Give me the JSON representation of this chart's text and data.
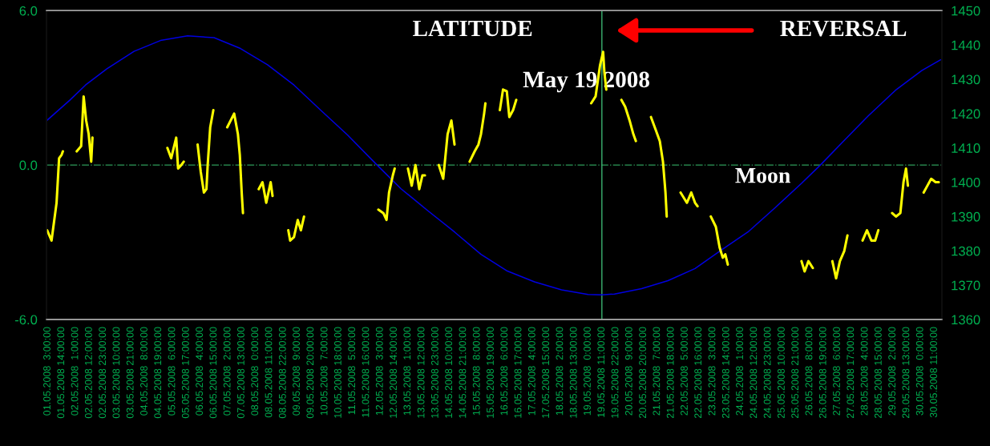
{
  "chart_data": {
    "type": "line",
    "annotations": [
      "LATITUDE",
      "May 19 2008",
      "REVERSAL"
    ],
    "xlim": [
      "2008-05-01T02:00",
      "2008-05-30T17:00"
    ],
    "xticks": [
      {
        "value": "2008-05-01T03:00",
        "label": "01.05.2008  3:00:00"
      },
      {
        "value": "2008-05-01T14:00",
        "label": "01.05.2008 14:00:00"
      },
      {
        "value": "2008-05-02T01:00",
        "label": "02.05.2008  1:00:00"
      },
      {
        "value": "2008-05-02T12:00",
        "label": "02.05.2008 12:00:00"
      },
      {
        "value": "2008-05-02T23:00",
        "label": "02.05.2008 23:00:00"
      },
      {
        "value": "2008-05-03T10:00",
        "label": "03.05.2008 10:00:00"
      },
      {
        "value": "2008-05-03T21:00",
        "label": "03.05.2008 21:00:00"
      },
      {
        "value": "2008-05-04T08:00",
        "label": "04.05.2008  8:00:00"
      },
      {
        "value": "2008-05-04T19:00",
        "label": "04.05.2008 19:00:00"
      },
      {
        "value": "2008-05-05T06:00",
        "label": "05.05.2008  6:00:00"
      },
      {
        "value": "2008-05-05T17:00",
        "label": "05.05.2008 17:00:00"
      },
      {
        "value": "2008-05-06T04:00",
        "label": "06.05.2008  4:00:00"
      },
      {
        "value": "2008-05-06T15:00",
        "label": "06.05.2008 15:00:00"
      },
      {
        "value": "2008-05-07T02:00",
        "label": "07.05.2008  2:00:00"
      },
      {
        "value": "2008-05-07T13:00",
        "label": "07.05.2008 13:00:00"
      },
      {
        "value": "2008-05-08T00:00",
        "label": "08.05.2008  0:00:00"
      },
      {
        "value": "2008-05-08T11:00",
        "label": "08.05.2008 11:00:00"
      },
      {
        "value": "2008-05-08T22:00",
        "label": "08.05.2008 22:00:00"
      },
      {
        "value": "2008-05-09T09:00",
        "label": "09.05.2008  9:00:00"
      },
      {
        "value": "2008-05-09T20:00",
        "label": "09.05.2008 20:00:00"
      },
      {
        "value": "2008-05-10T07:00",
        "label": "10.05.2008  7:00:00"
      },
      {
        "value": "2008-05-10T18:00",
        "label": "10.05.2008 18:00:00"
      },
      {
        "value": "2008-05-11T05:00",
        "label": "11.05.2008  5:00:00"
      },
      {
        "value": "2008-05-11T16:00",
        "label": "11.05.2008 16:00:00"
      },
      {
        "value": "2008-05-12T03:00",
        "label": "12.05.2008  3:00:00"
      },
      {
        "value": "2008-05-12T14:00",
        "label": "12.05.2008 14:00:00"
      },
      {
        "value": "2008-05-13T01:00",
        "label": "13.05.2008  1:00:00"
      },
      {
        "value": "2008-05-13T12:00",
        "label": "13.05.2008 12:00:00"
      },
      {
        "value": "2008-05-13T23:00",
        "label": "13.05.2008 23:00:00"
      },
      {
        "value": "2008-05-14T10:00",
        "label": "14.05.2008 10:00:00"
      },
      {
        "value": "2008-05-14T21:00",
        "label": "14.05.2008 21:00:00"
      },
      {
        "value": "2008-05-15T08:00",
        "label": "15.05.2008  8:00:00"
      },
      {
        "value": "2008-05-15T19:00",
        "label": "15.05.2008 19:00:00"
      },
      {
        "value": "2008-05-16T06:00",
        "label": "16.05.2008  6:00:00"
      },
      {
        "value": "2008-05-16T17:00",
        "label": "16.05.2008 17:00:00"
      },
      {
        "value": "2008-05-17T04:00",
        "label": "17.05.2008  4:00:00"
      },
      {
        "value": "2008-05-17T15:00",
        "label": "17.05.2008 15:00:00"
      },
      {
        "value": "2008-05-18T02:00",
        "label": "18.05.2008  2:00:00"
      },
      {
        "value": "2008-05-18T13:00",
        "label": "18.05.2008 13:00:00"
      },
      {
        "value": "2008-05-19T00:00",
        "label": "19.05.2008  0:00:00"
      },
      {
        "value": "2008-05-19T11:00",
        "label": "19.05.2008 11:00:00"
      },
      {
        "value": "2008-05-19T22:00",
        "label": "19.05.2008 22:00:00"
      },
      {
        "value": "2008-05-20T09:00",
        "label": "20.05.2008  9:00:00"
      },
      {
        "value": "2008-05-20T20:00",
        "label": "20.05.2008 20:00:00"
      },
      {
        "value": "2008-05-21T07:00",
        "label": "21.05.2008  7:00:00"
      },
      {
        "value": "2008-05-21T18:00",
        "label": "21.05.2008 18:00:00"
      },
      {
        "value": "2008-05-22T05:00",
        "label": "22.05.2008  5:00:00"
      },
      {
        "value": "2008-05-22T16:00",
        "label": "22.05.2008 16:00:00"
      },
      {
        "value": "2008-05-23T03:00",
        "label": "23.05.2008  3:00:00"
      },
      {
        "value": "2008-05-23T14:00",
        "label": "23.05.2008 14:00:00"
      },
      {
        "value": "2008-05-24T01:00",
        "label": "24.05.2008  1:00:00"
      },
      {
        "value": "2008-05-24T12:00",
        "label": "24.05.2008 12:00:00"
      },
      {
        "value": "2008-05-24T23:00",
        "label": "24.05.2008 23:00:00"
      },
      {
        "value": "2008-05-25T10:00",
        "label": "25.05.2008 10:00:00"
      },
      {
        "value": "2008-05-25T21:00",
        "label": "25.05.2008 21:00:00"
      },
      {
        "value": "2008-05-26T08:00",
        "label": "26.05.2008  8:00:00"
      },
      {
        "value": "2008-05-26T19:00",
        "label": "26.05.2008 19:00:00"
      },
      {
        "value": "2008-05-27T06:00",
        "label": "27.05.2008  6:00:00"
      },
      {
        "value": "2008-05-27T17:00",
        "label": "27.05.2008 17:00:00"
      },
      {
        "value": "2008-05-28T04:00",
        "label": "28.05.2008  4:00:00"
      },
      {
        "value": "2008-05-28T15:00",
        "label": "28.05.2008 15:00:00"
      },
      {
        "value": "2008-05-29T02:00",
        "label": "29.05.2008  2:00:00"
      },
      {
        "value": "2008-05-29T13:00",
        "label": "29.05.2008 13:00:00"
      },
      {
        "value": "2008-05-30T00:00",
        "label": "30.05.2008  0:00:00"
      },
      {
        "value": "2008-05-30T11:00",
        "label": "30.05.2008 11:00:00"
      }
    ],
    "ylim": [
      -6,
      6
    ],
    "yticks": [
      {
        "value": -6,
        "label": "-6.0"
      },
      {
        "value": 0,
        "label": "0.0"
      },
      {
        "value": 6,
        "label": "6.0"
      }
    ],
    "y2lim": [
      1360,
      1450
    ],
    "y2ticks": [
      1360,
      1370,
      1380,
      1390,
      1400,
      1410,
      1420,
      1430,
      1440,
      1450
    ],
    "ref_lines": [
      {
        "axis": "y",
        "value": 0,
        "color": "#2e9b5a",
        "line_style": "dashdot"
      },
      {
        "axis": "x",
        "value": "2008-05-19T11:00",
        "color": "#3cb371",
        "line_style": "solid"
      }
    ],
    "grid": false,
    "legend": false,
    "series": [
      {
        "name": "Moon",
        "color": "#0000e0",
        "x": [
          "2008-05-01T02:00",
          "2008-05-01T20:30",
          "2008-05-02T09:00",
          "2008-05-03T02:00",
          "2008-05-03T23:30",
          "2008-05-04T20:30",
          "2008-05-05T18:00",
          "2008-05-06T15:00",
          "2008-05-07T12:00",
          "2008-05-08T09:30",
          "2008-05-09T06:30",
          "2008-05-10T04:00",
          "2008-05-11T01:00",
          "2008-05-12T00:30",
          "2008-05-12T19:30",
          "2008-05-13T16:30",
          "2008-05-14T14:00",
          "2008-05-15T11:00",
          "2008-05-16T08:00",
          "2008-05-17T05:30",
          "2008-05-18T03:00",
          "2008-05-19T00:00",
          "2008-05-19T11:00",
          "2008-05-19T21:00",
          "2008-05-20T18:30",
          "2008-05-21T15:30",
          "2008-05-22T13:00",
          "2008-05-23T10:00",
          "2008-05-24T07:00",
          "2008-05-25T04:30",
          "2008-05-26T01:30",
          "2008-05-26T16:30",
          "2008-05-27T09:30",
          "2008-05-28T06:30",
          "2008-05-29T04:00",
          "2008-05-30T01:00",
          "2008-05-30T16:00"
        ],
        "values": [
          1.72,
          2.52,
          3.11,
          3.74,
          4.42,
          4.84,
          5.02,
          4.95,
          4.53,
          3.9,
          3.11,
          2.12,
          1.17,
          0,
          -0.92,
          -1.76,
          -2.6,
          -3.47,
          -4.12,
          -4.54,
          -4.85,
          -5.03,
          -5.04,
          -5.01,
          -4.8,
          -4.49,
          -4.02,
          -3.3,
          -2.6,
          -1.66,
          -0.71,
          0,
          0.86,
          1.91,
          2.9,
          3.67,
          4.09
        ]
      },
      {
        "axis": "y2",
        "color": "#ffff00",
        "x": [
          "2008-05-01T02:30",
          "2008-05-01T06:00",
          "2008-05-01T10:00",
          "2008-05-01T12:00",
          "2008-05-01T14:00",
          "2008-05-01T15:00",
          "2008-05-01T20:00",
          "2008-05-02T02:00",
          "2008-05-02T05:30",
          "2008-05-02T07:30",
          "2008-05-02T09:30",
          "2008-05-02T11:30",
          "2008-05-02T13:30",
          "2008-05-02T14:30",
          "2008-05-03T12:00",
          "2008-05-05T02:00",
          "2008-05-05T05:00",
          "2008-05-05T09:00",
          "2008-05-05T10:30",
          "2008-05-05T13:00",
          "2008-05-05T15:00",
          "2008-05-05T20:00",
          "2008-05-06T02:00",
          "2008-05-06T04:30",
          "2008-05-06T07:00",
          "2008-05-06T09:00",
          "2008-05-06T10:00",
          "2008-05-06T12:00",
          "2008-05-06T14:30",
          "2008-05-06T20:00",
          "2008-05-07T01:30",
          "2008-05-07T07:00",
          "2008-05-07T10:00",
          "2008-05-07T11:30",
          "2008-05-07T13:00",
          "2008-05-07T14:00",
          "2008-05-07T20:00",
          "2008-05-08T02:30",
          "2008-05-08T05:30",
          "2008-05-08T08:30",
          "2008-05-08T12:00",
          "2008-05-08T13:30",
          "2008-05-08T20:00",
          "2008-05-09T02:00",
          "2008-05-09T03:30",
          "2008-05-09T06:30",
          "2008-05-09T09:30",
          "2008-05-09T12:00",
          "2008-05-09T14:30",
          "2008-05-10T12:00",
          "2008-05-12T01:30",
          "2008-05-12T05:30",
          "2008-05-12T08:00",
          "2008-05-12T10:00",
          "2008-05-12T13:00",
          "2008-05-12T14:30",
          "2008-05-12T20:00",
          "2008-05-13T01:00",
          "2008-05-13T04:00",
          "2008-05-13T07:00",
          "2008-05-13T10:00",
          "2008-05-13T12:30",
          "2008-05-13T14:30",
          "2008-05-13T20:00",
          "2008-05-14T01:30",
          "2008-05-14T05:00",
          "2008-05-14T08:30",
          "2008-05-14T11:30",
          "2008-05-14T14:00",
          "2008-05-14T20:00",
          "2008-05-15T02:00",
          "2008-05-15T06:00",
          "2008-05-15T09:00",
          "2008-05-15T11:00",
          "2008-05-15T13:30",
          "2008-05-15T14:30",
          "2008-05-15T20:00",
          "2008-05-16T02:00",
          "2008-05-16T04:30",
          "2008-05-16T07:30",
          "2008-05-16T09:30",
          "2008-05-16T12:30",
          "2008-05-16T15:00",
          "2008-05-17T12:00",
          "2008-05-19T02:30",
          "2008-05-19T06:00",
          "2008-05-19T09:30",
          "2008-05-19T12:00",
          "2008-05-19T13:00",
          "2008-05-19T14:30",
          "2008-05-19T20:00",
          "2008-05-20T02:30",
          "2008-05-20T05:30",
          "2008-05-20T09:00",
          "2008-05-20T12:00",
          "2008-05-20T14:00",
          "2008-05-20T20:00",
          "2008-05-21T02:00",
          "2008-05-21T06:00",
          "2008-05-21T09:00",
          "2008-05-21T11:30",
          "2008-05-21T13:30",
          "2008-05-21T14:30",
          "2008-05-21T20:00",
          "2008-05-22T01:30",
          "2008-05-22T06:30",
          "2008-05-22T10:00",
          "2008-05-22T13:00",
          "2008-05-22T15:00",
          "2008-05-22T20:00",
          "2008-05-23T01:30",
          "2008-05-23T05:30",
          "2008-05-23T08:30",
          "2008-05-23T11:00",
          "2008-05-23T13:00",
          "2008-05-23T15:00",
          "2008-05-25T00:00",
          "2008-05-26T01:30",
          "2008-05-26T04:00",
          "2008-05-26T07:00",
          "2008-05-26T10:30",
          "2008-05-26T20:00",
          "2008-05-27T02:00",
          "2008-05-27T05:00",
          "2008-05-27T08:00",
          "2008-05-27T11:30",
          "2008-05-27T14:00",
          "2008-05-27T20:00",
          "2008-05-28T02:00",
          "2008-05-28T05:30",
          "2008-05-28T09:00",
          "2008-05-28T12:00",
          "2008-05-28T14:30",
          "2008-05-28T20:00",
          "2008-05-29T01:30",
          "2008-05-29T04:30",
          "2008-05-29T08:00",
          "2008-05-29T10:30",
          "2008-05-29T12:30",
          "2008-05-29T14:00",
          "2008-05-29T20:00",
          "2008-05-30T02:30",
          "2008-05-30T05:30",
          "2008-05-30T08:30",
          "2008-05-30T12:00",
          "2008-05-30T14:30"
        ],
        "values": [
          1386,
          1383,
          1394,
          1407,
          1408,
          1409,
          null,
          1409,
          1410.5,
          1425,
          1418,
          1414,
          1406,
          1413,
          null,
          1410,
          1407,
          1413,
          1404,
          1405,
          1406,
          null,
          1411,
          1403,
          1397,
          1398,
          1405,
          1416,
          1421,
          null,
          1416,
          1420,
          1414,
          1408,
          1397,
          1391,
          null,
          1398,
          1400,
          1394,
          1400,
          1396,
          null,
          1386,
          1383,
          1384,
          1389,
          1386,
          1390,
          null,
          1392,
          1391,
          1389,
          1397,
          1402,
          1404,
          null,
          1404,
          1399,
          1405,
          1398,
          1402,
          1402,
          null,
          1405,
          1401,
          1414,
          1418,
          1411,
          null,
          1406,
          1409,
          1411,
          1414,
          1420,
          1423,
          null,
          1421,
          1427,
          1426.5,
          1419,
          1421,
          1424,
          null,
          1423,
          1425,
          1434,
          1438,
          1432,
          1427,
          null,
          1424,
          1422,
          1418,
          1414,
          1412,
          null,
          1419,
          1415,
          1412,
          1406,
          1397,
          1390,
          null,
          1397,
          1394,
          1397,
          1394,
          1393,
          null,
          1390,
          1387,
          1381,
          1378,
          1379,
          1376,
          null,
          1377,
          1374,
          1377,
          1375,
          null,
          1377,
          1372,
          1377,
          1380,
          1384.5,
          null,
          1383,
          1386,
          1383,
          1383,
          1386,
          null,
          1391,
          1390,
          1391,
          1400,
          1404,
          1399,
          null,
          1397,
          1399,
          1401,
          1400,
          1400
        ]
      }
    ]
  }
}
